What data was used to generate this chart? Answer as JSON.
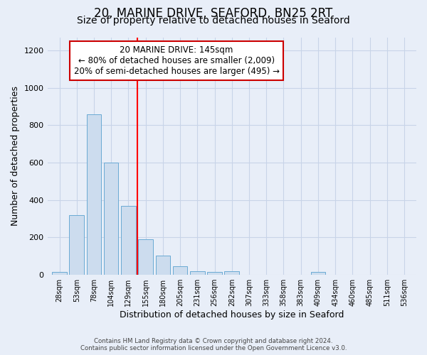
{
  "title": "20, MARINE DRIVE, SEAFORD, BN25 2RT",
  "subtitle": "Size of property relative to detached houses in Seaford",
  "xlabel": "Distribution of detached houses by size in Seaford",
  "ylabel": "Number of detached properties",
  "bin_labels": [
    "28sqm",
    "53sqm",
    "78sqm",
    "104sqm",
    "129sqm",
    "155sqm",
    "180sqm",
    "205sqm",
    "231sqm",
    "256sqm",
    "282sqm",
    "307sqm",
    "333sqm",
    "358sqm",
    "383sqm",
    "409sqm",
    "434sqm",
    "460sqm",
    "485sqm",
    "511sqm",
    "536sqm"
  ],
  "bar_heights": [
    15,
    320,
    860,
    600,
    370,
    190,
    105,
    45,
    20,
    15,
    20,
    0,
    0,
    0,
    0,
    15,
    0,
    0,
    0,
    0,
    0
  ],
  "bar_color": "#ccdcee",
  "bar_edge_color": "#6aaad4",
  "red_line_x": 5.0,
  "red_line_label": "20 MARINE DRIVE: 145sqm",
  "annotation_line1": "← 80% of detached houses are smaller (2,009)",
  "annotation_line2": "20% of semi-detached houses are larger (495) →",
  "annotation_box_color": "#ffffff",
  "annotation_box_edge": "#cc0000",
  "ylim": [
    0,
    1270
  ],
  "yticks": [
    0,
    200,
    400,
    600,
    800,
    1000,
    1200
  ],
  "grid_color": "#c8d4e8",
  "background_color": "#e8eef8",
  "footer_line1": "Contains HM Land Registry data © Crown copyright and database right 2024.",
  "footer_line2": "Contains public sector information licensed under the Open Government Licence v3.0.",
  "title_fontsize": 12,
  "subtitle_fontsize": 10,
  "ylabel_fontsize": 9,
  "xlabel_fontsize": 9,
  "annotation_fontsize": 8.5
}
